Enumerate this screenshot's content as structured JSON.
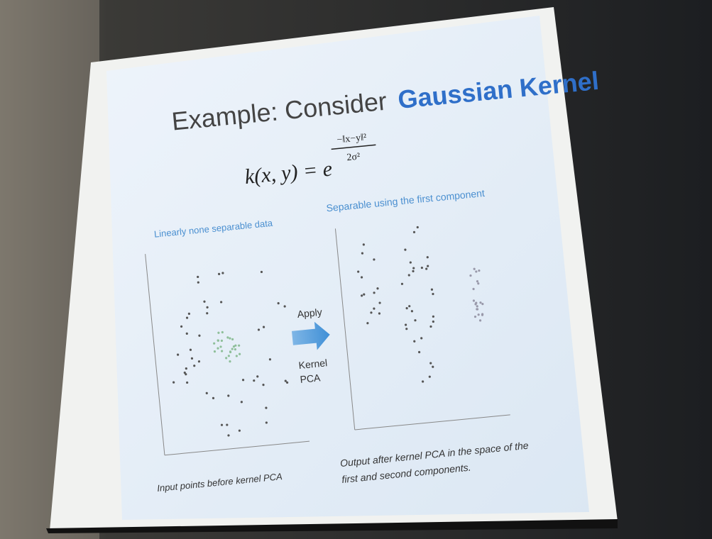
{
  "slide": {
    "title": {
      "plain": "Example: Consider",
      "highlight": "Gaussian Kernel"
    },
    "formula": {
      "lhs": "k(x, y) = e",
      "numerator": "−‖x−y‖²",
      "denominator": "2σ²"
    },
    "left_plot": {
      "caption_top": "Linearly none separable data",
      "caption_bottom": "Input points before kernel PCA"
    },
    "right_plot": {
      "caption_top": "Separable using the first component",
      "caption_bottom": [
        "Output after kernel PCA in the space of the",
        "first and second components."
      ]
    },
    "arrow": {
      "top": "Apply",
      "bottom": [
        "Kernel",
        "PCA"
      ]
    }
  }
}
